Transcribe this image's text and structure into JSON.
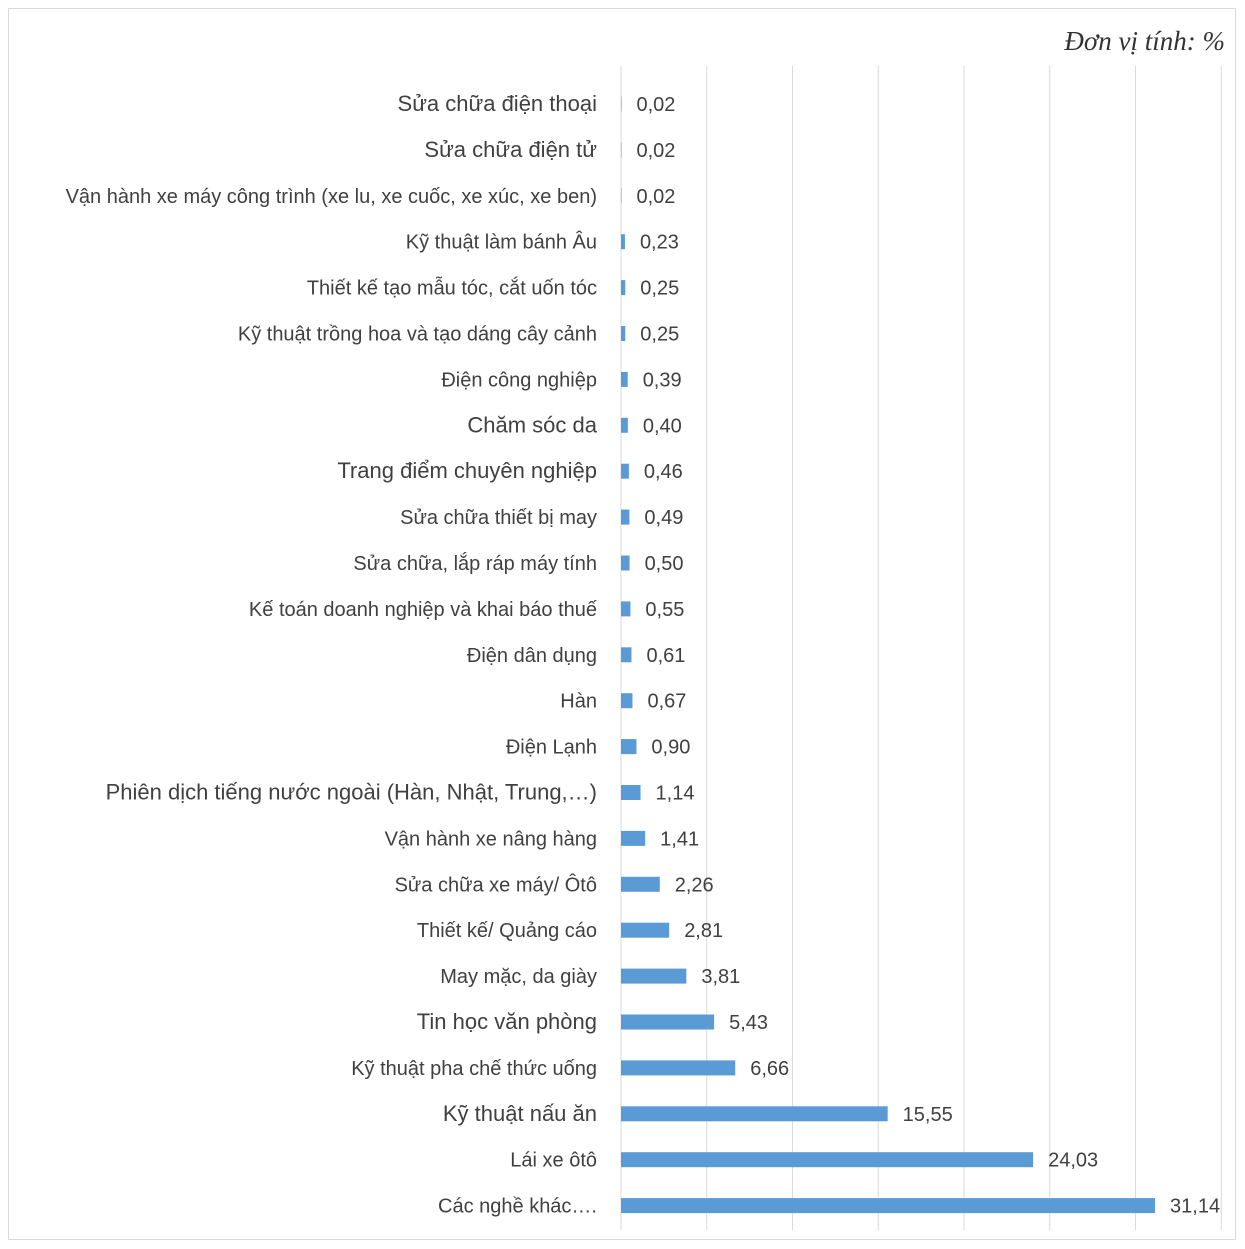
{
  "unit_label": "Đơn vị tính: %",
  "chart_data": {
    "type": "bar",
    "orientation": "horizontal",
    "title": "",
    "xlabel": "",
    "ylabel": "",
    "unit": "%",
    "xlim": [
      0,
      35
    ],
    "grid": true,
    "bar_color": "#5b9bd5",
    "categories": [
      "Sửa chữa điện thoại",
      "Sửa chữa điện tử",
      "Vận hành xe máy công trình (xe lu, xe cuốc, xe xúc, xe ben)",
      "Kỹ thuật làm bánh Âu",
      "Thiết kế tạo mẫu tóc, cắt uốn tóc",
      "Kỹ thuật trồng hoa và tạo dáng cây cảnh",
      "Điện công nghiệp",
      "Chăm sóc da",
      "Trang điểm chuyên nghiệp",
      "Sửa chữa thiết bị may",
      "Sửa chữa, lắp ráp máy tính",
      "Kế toán doanh nghiệp và khai báo thuế",
      "Điện dân dụng",
      "Hàn",
      "Điện Lạnh",
      "Phiên dịch tiếng nước ngoài (Hàn, Nhật, Trung,…)",
      "Vận hành xe nâng hàng",
      "Sửa chữa xe máy/ Ôtô",
      "Thiết kế/ Quảng cáo",
      "May mặc, da giày",
      "Tin học văn phòng",
      "Kỹ thuật pha chế thức uống",
      "Kỹ thuật nấu ăn",
      "Lái xe ôtô",
      "Các nghề khác…."
    ],
    "values": [
      0.02,
      0.02,
      0.02,
      0.23,
      0.25,
      0.25,
      0.39,
      0.4,
      0.46,
      0.49,
      0.5,
      0.55,
      0.61,
      0.67,
      0.9,
      1.14,
      1.41,
      2.26,
      2.81,
      3.81,
      5.43,
      6.66,
      15.55,
      24.03,
      31.14
    ],
    "value_labels": [
      "0,02",
      "0,02",
      "0,02",
      "0,23",
      "0,25",
      "0,25",
      "0,39",
      "0,40",
      "0,46",
      "0,49",
      "0,50",
      "0,55",
      "0,61",
      "0,67",
      "0,90",
      "1,14",
      "1,41",
      "2,26",
      "2,81",
      "3,81",
      "5,43",
      "6,66",
      "15,55",
      "24,03",
      "31,14"
    ]
  }
}
